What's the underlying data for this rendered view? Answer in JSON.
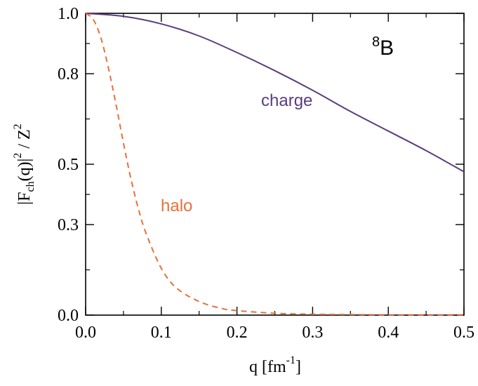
{
  "chart_data": {
    "type": "line",
    "xlabel": "q [fm^-1]",
    "ylabel": "|F_ch(q)|^2 / Z^2",
    "xlim": [
      0.0,
      0.5
    ],
    "ylim": [
      0.0,
      1.0
    ],
    "x_ticks": [
      0.0,
      0.1,
      0.2,
      0.3,
      0.4,
      0.5
    ],
    "y_ticks": [
      0.0,
      0.3,
      0.5,
      0.8,
      1.0
    ],
    "x_tick_labels": [
      "0.0",
      "0.1",
      "0.2",
      "0.3",
      "0.4",
      "0.5"
    ],
    "y_tick_labels": [
      "0.0",
      "0.3",
      "0.5",
      "0.8",
      "1.0"
    ],
    "grid": false,
    "nucleus_label": {
      "sup": "8",
      "text": "B"
    },
    "series": [
      {
        "name": "charge",
        "style": "solid",
        "color": "#5b3d7e",
        "x": [
          0.0,
          0.05,
          0.1,
          0.15,
          0.2,
          0.25,
          0.3,
          0.35,
          0.4,
          0.45,
          0.5
        ],
        "y": [
          1.0,
          0.99,
          0.965,
          0.925,
          0.87,
          0.81,
          0.745,
          0.675,
          0.61,
          0.545,
          0.475
        ]
      },
      {
        "name": "halo",
        "style": "dashed",
        "color": "#e8703a",
        "x": [
          0.0,
          0.01,
          0.02,
          0.03,
          0.04,
          0.05,
          0.06,
          0.07,
          0.08,
          0.1,
          0.12,
          0.15,
          0.18,
          0.2,
          0.25,
          0.3,
          0.35,
          0.4,
          0.45,
          0.5
        ],
        "y": [
          1.0,
          0.98,
          0.92,
          0.82,
          0.7,
          0.57,
          0.45,
          0.35,
          0.27,
          0.155,
          0.09,
          0.045,
          0.022,
          0.015,
          0.006,
          0.003,
          0.002,
          0.001,
          0.001,
          0.001
        ]
      }
    ],
    "annotations": [
      {
        "text": "charge",
        "series": "charge"
      },
      {
        "text": "halo",
        "series": "halo"
      }
    ]
  }
}
